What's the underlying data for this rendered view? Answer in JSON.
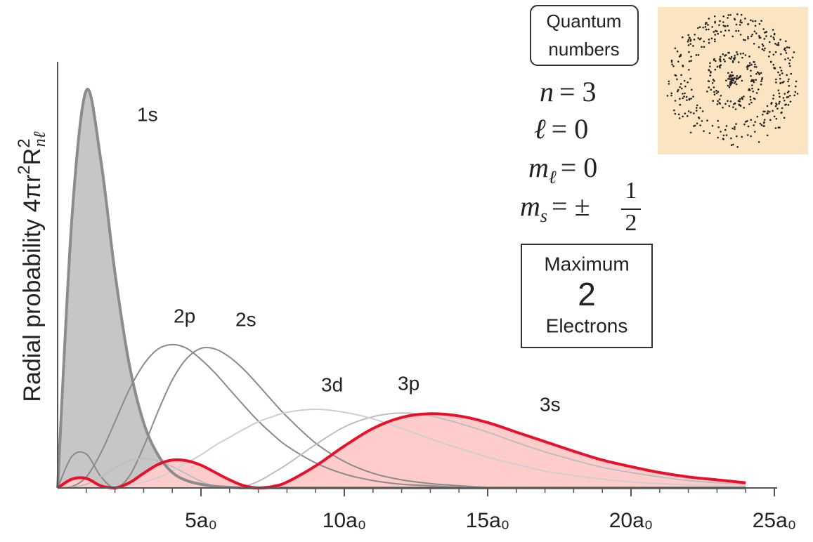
{
  "chart_data": {
    "type": "line",
    "ylabel": {
      "text": "Radial probability 4πr",
      "sup1": "2",
      "symbol": "R",
      "sup2": "2",
      "sub": "nℓ"
    },
    "x": [
      0,
      0.5,
      1,
      1.5,
      2,
      2.5,
      3,
      3.5,
      4,
      4.5,
      5,
      5.5,
      6,
      6.5,
      7,
      7.5,
      8,
      9,
      10,
      11,
      12,
      13,
      14,
      15,
      16,
      17,
      18,
      19,
      20,
      21,
      22,
      23,
      24
    ],
    "series": [
      {
        "name": "1s",
        "color": "#8c8c8c",
        "fill": "#c6c6c6",
        "values": [
          0,
          0.368,
          0.541,
          0.448,
          0.293,
          0.168,
          0.089,
          0.045,
          0.021,
          0.01,
          0.005,
          0.002,
          0.001,
          0,
          0,
          0,
          0,
          0,
          0,
          0,
          0,
          0,
          0,
          0,
          0,
          0,
          0,
          0,
          0,
          0,
          0,
          0,
          0
        ]
      },
      {
        "name": "2s",
        "color": "#8a8a8a",
        "values": [
          0,
          0.043,
          0.046,
          0.016,
          0,
          0.016,
          0.056,
          0.104,
          0.147,
          0.176,
          0.19,
          0.189,
          0.178,
          0.161,
          0.14,
          0.118,
          0.097,
          0.061,
          0.036,
          0.02,
          0.011,
          0.006,
          0.003,
          0.001,
          0.001,
          0,
          0,
          0,
          0,
          0,
          0,
          0,
          0
        ]
      },
      {
        "name": "2p",
        "color": "#8a8a8a",
        "values": [
          0,
          0.002,
          0.015,
          0.047,
          0.09,
          0.134,
          0.168,
          0.189,
          0.195,
          0.19,
          0.175,
          0.156,
          0.134,
          0.112,
          0.091,
          0.073,
          0.057,
          0.034,
          0.019,
          0.01,
          0.005,
          0.003,
          0.001,
          0.001,
          0,
          0,
          0,
          0,
          0,
          0,
          0,
          0,
          0
        ]
      },
      {
        "name": "3s",
        "color": "#e8102a",
        "fill": "#ffcccc",
        "values": [
          0,
          0.012,
          0.013,
          0.003,
          0.0,
          0.007,
          0.02,
          0.032,
          0.038,
          0.037,
          0.031,
          0.021,
          0.011,
          0.003,
          0.0,
          0.002,
          0.008,
          0.03,
          0.057,
          0.081,
          0.096,
          0.101,
          0.098,
          0.089,
          0.076,
          0.063,
          0.05,
          0.038,
          0.029,
          0.021,
          0.015,
          0.011,
          0.007
        ]
      },
      {
        "name": "3p",
        "color": "#bdbdbd",
        "values": [
          0,
          0.001,
          0.005,
          0.015,
          0.027,
          0.037,
          0.04,
          0.037,
          0.029,
          0.019,
          0.009,
          0.002,
          0,
          0.002,
          0.009,
          0.02,
          0.032,
          0.059,
          0.083,
          0.097,
          0.102,
          0.098,
          0.088,
          0.076,
          0.062,
          0.049,
          0.038,
          0.028,
          0.021,
          0.015,
          0.01,
          0.007,
          0.005
        ]
      },
      {
        "name": "3d",
        "color": "#cfcfcf",
        "values": [
          0,
          0.0,
          0.0,
          0.0,
          0.001,
          0.004,
          0.008,
          0.014,
          0.023,
          0.034,
          0.045,
          0.058,
          0.069,
          0.08,
          0.09,
          0.097,
          0.103,
          0.107,
          0.103,
          0.094,
          0.081,
          0.067,
          0.054,
          0.042,
          0.032,
          0.023,
          0.017,
          0.012,
          0.008,
          0.006,
          0.004,
          0.003,
          0.002
        ]
      }
    ],
    "xlim": [
      0,
      25
    ],
    "ylim": [
      0,
      0.58
    ],
    "xticks": [
      {
        "value": 5,
        "label": "5a₀"
      },
      {
        "value": 10,
        "label": "10a₀"
      },
      {
        "value": 15,
        "label": "15a₀"
      },
      {
        "value": 20,
        "label": "20a₀"
      },
      {
        "value": 25,
        "label": "25a₀"
      }
    ],
    "xminor": [
      1,
      2,
      3,
      4,
      6,
      7,
      8,
      9,
      11,
      12,
      13,
      14,
      16,
      17,
      18,
      19,
      21,
      22,
      23,
      24
    ]
  },
  "quantum_numbers": {
    "title": "Quantum numbers",
    "items": [
      {
        "symbol": "n",
        "value": "= 3"
      },
      {
        "symbol": "ℓ",
        "value": "= 0"
      },
      {
        "symbol": "m",
        "sub": "ℓ",
        "value": "= 0"
      },
      {
        "symbol": "m",
        "sub": "s",
        "value": "= ±",
        "numerator": "1",
        "denominator": "2"
      }
    ]
  },
  "capacity": {
    "line1": "Maximum",
    "value": 2,
    "line2": "Electrons"
  }
}
